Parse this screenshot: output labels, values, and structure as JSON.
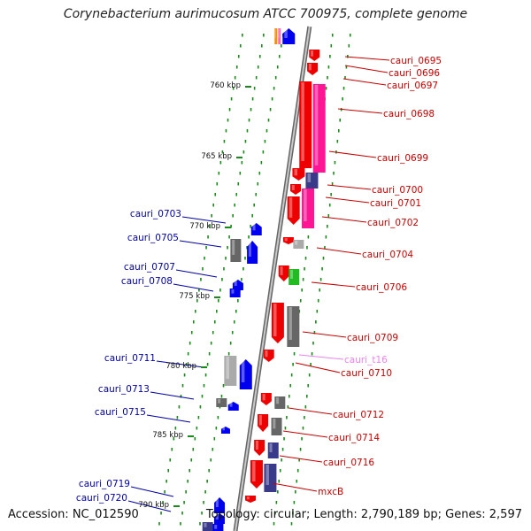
{
  "title": "Corynebacterium aurimucosum ATCC 700975, complete genome",
  "footer": {
    "accession": "Accession: NC_012590",
    "topology": "Topology: circular; Length: 2,790,189 bp; Genes: 2,597"
  },
  "colors": {
    "forward_gene": "#ee0000",
    "reverse_gene": "#0000ee",
    "rrna": "#ff1493",
    "trna": "#ffb6c1",
    "label_forward": "#cc0000",
    "label_reverse": "#0000aa",
    "label_trna": "#ee82ee",
    "dot": "#1a8a1a",
    "backbone": "#808080"
  },
  "scale_labels": [
    "760 kbp",
    "765 kbp",
    "770 kbp",
    "775 kbp",
    "780 kbp",
    "785 kbp",
    "790 kbp"
  ],
  "right_labels": [
    "cauri_0695",
    "cauri_0696",
    "cauri_0697",
    "cauri_0698",
    "cauri_0699",
    "cauri_0700",
    "cauri_0701",
    "cauri_0702",
    "cauri_0704",
    "cauri_0706",
    "cauri_0709",
    "cauri_t16",
    "cauri_0710",
    "cauri_0712",
    "cauri_0714",
    "cauri_0716",
    "mxcB"
  ],
  "left_labels": [
    "cauri_0703",
    "cauri_0705",
    "cauri_0707",
    "cauri_0708",
    "cauri_0711",
    "cauri_0713",
    "cauri_0715",
    "cauri_0719",
    "cauri_0720"
  ]
}
